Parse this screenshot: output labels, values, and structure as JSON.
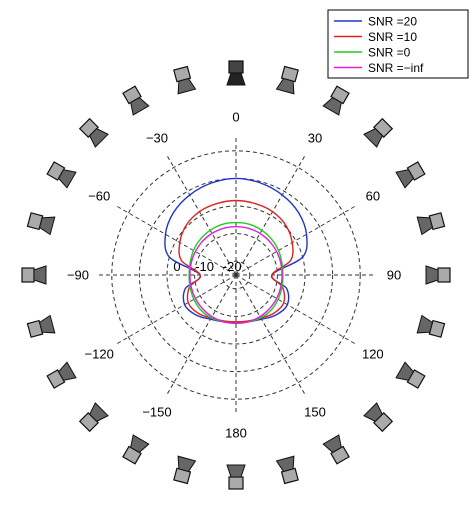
{
  "chart_data": {
    "type": "polar-line",
    "angle_unit": "degrees",
    "angle_zero": "top",
    "angle_direction": "clockwise",
    "r_range": [
      -25,
      25
    ],
    "r_ticks": [
      {
        "value": 0,
        "label": "0"
      },
      {
        "value": -10,
        "label": "-10"
      },
      {
        "value": -20,
        "label": "-20"
      }
    ],
    "rings": [
      -20,
      -10,
      0,
      10,
      20
    ],
    "grid": true,
    "angle_ticks": [
      {
        "angle": 0,
        "label": "0"
      },
      {
        "angle": 30,
        "label": "30"
      },
      {
        "angle": 60,
        "label": "60"
      },
      {
        "angle": 90,
        "label": "90"
      },
      {
        "angle": 120,
        "label": "120"
      },
      {
        "angle": 150,
        "label": "150"
      },
      {
        "angle": 180,
        "label": "180"
      },
      {
        "angle": -150,
        "label": "−150"
      },
      {
        "angle": -120,
        "label": "−120"
      },
      {
        "angle": -90,
        "label": "−90"
      },
      {
        "angle": -60,
        "label": "−60"
      },
      {
        "angle": -30,
        "label": "−30"
      }
    ],
    "angles": [
      0,
      15,
      30,
      45,
      60,
      75,
      90,
      105,
      120,
      135,
      150,
      165,
      180,
      195,
      210,
      225,
      240,
      255,
      270,
      285,
      300,
      315,
      330,
      345
    ],
    "series": [
      {
        "name": "SNR =20",
        "color": "#2233cc",
        "values": [
          10.0,
          9.5,
          8.5,
          7.0,
          4.5,
          0.0,
          -12.0,
          -6.0,
          -3.5,
          -4.5,
          -6.5,
          -7.5,
          -8.0,
          -7.5,
          -6.5,
          -4.5,
          -3.5,
          -6.0,
          -12.0,
          0.0,
          4.5,
          7.0,
          8.5,
          9.5
        ]
      },
      {
        "name": "SNR =10",
        "color": "#dd2222",
        "values": [
          2.0,
          1.8,
          1.5,
          0.5,
          -1.5,
          -4.5,
          -12.0,
          -7.5,
          -5.0,
          -5.5,
          -7.0,
          -7.8,
          -8.0,
          -7.8,
          -7.0,
          -5.5,
          -5.0,
          -7.5,
          -12.0,
          -4.5,
          -1.5,
          0.5,
          1.5,
          1.8
        ]
      },
      {
        "name": "SNR =0",
        "color": "#22cc22",
        "values": [
          -6.0,
          -6.0,
          -6.3,
          -6.7,
          -7.2,
          -7.8,
          -8.0,
          -7.8,
          -7.4,
          -7.0,
          -7.1,
          -7.4,
          -7.5,
          -7.4,
          -7.1,
          -7.0,
          -7.4,
          -7.8,
          -8.0,
          -7.8,
          -7.2,
          -6.7,
          -6.3,
          -6.0
        ]
      },
      {
        "name": "SNR =−inf",
        "color": "#dd22dd",
        "values": [
          -7.5,
          -7.5,
          -7.6,
          -7.8,
          -8.0,
          -8.2,
          -8.3,
          -8.2,
          -8.0,
          -7.8,
          -7.6,
          -7.5,
          -7.5,
          -7.5,
          -7.6,
          -7.8,
          -8.0,
          -8.2,
          -8.3,
          -8.2,
          -8.0,
          -7.8,
          -7.6,
          -7.5
        ]
      }
    ],
    "legend": {
      "position": "top-right"
    },
    "speakers": {
      "count": 24,
      "step_deg": 15,
      "highlighted_angle": 0,
      "icon": "loudspeaker-icon",
      "fill_color": "#aaaaaa",
      "highlight_color": "#444444"
    }
  }
}
